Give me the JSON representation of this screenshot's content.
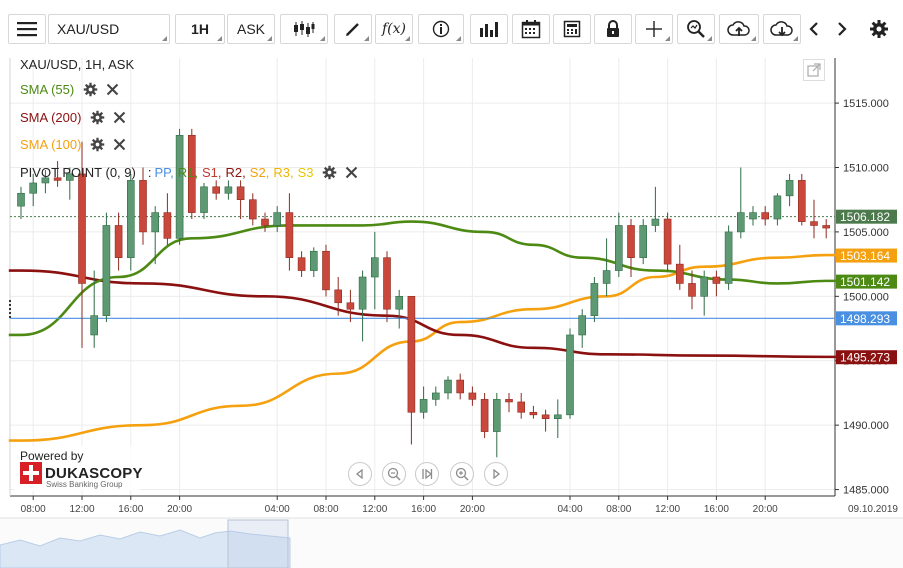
{
  "toolbar": {
    "symbol": "XAU/USD",
    "timeframe": "1H",
    "side": "ASK",
    "icons": [
      "menu-icon",
      "candle-type-icon",
      "draw-icon",
      "function-icon",
      "info-icon",
      "volume-icon",
      "calendar-icon",
      "calculator-icon",
      "lock-icon",
      "crosshair-icon",
      "zoom-icon",
      "upload-icon",
      "download-icon",
      "prev-icon",
      "next-icon",
      "settings-icon"
    ]
  },
  "legend": {
    "title": "XAU/USD, 1H, ASK",
    "sma55": {
      "label": "SMA (55)",
      "color": "#4c8a14"
    },
    "sma200": {
      "label": "SMA (200)",
      "color": "#8b1010"
    },
    "sma100": {
      "label": "SMA (100)",
      "color": "#f5a10f"
    },
    "pivot": {
      "label": "PIVOT POINT (0, 9)",
      "sep": ":",
      "items": [
        {
          "label": "PP",
          "color": "#4a90e2",
          "comma": ","
        },
        {
          "label": "R1",
          "color": "#4c8a14",
          "comma": ","
        },
        {
          "label": "S1",
          "color": "#c0392b",
          "comma": ","
        },
        {
          "label": "R2",
          "color": "#8b1010",
          "comma": ","
        },
        {
          "label": "S2",
          "color": "#f5a10f",
          "comma": ","
        },
        {
          "label": "R3",
          "color": "#f0b400",
          "comma": ","
        },
        {
          "label": "S3",
          "color": "#e6c800",
          "comma": ""
        }
      ]
    }
  },
  "powered": {
    "line1": "Powered by",
    "brand": "DUKASCOPY",
    "sub": "Swiss Banking Group"
  },
  "chart_data": {
    "type": "candlestick",
    "ylim": [
      1484.5,
      1518.5
    ],
    "y_ticks": [
      1485,
      1490,
      1495,
      1500,
      1505,
      1510,
      1515
    ],
    "y_tick_labels": [
      "1485.000",
      "1490.000",
      "1495.000",
      "1500.000",
      "1505.000",
      "1510.000",
      "1515.000"
    ],
    "x_ticks": [
      {
        "label": "08:00",
        "i": 1
      },
      {
        "label": "12:00",
        "i": 5
      },
      {
        "label": "16:00",
        "i": 9
      },
      {
        "label": "20:00",
        "i": 13
      },
      {
        "label": "04:00",
        "i": 21
      },
      {
        "label": "08:00",
        "i": 25
      },
      {
        "label": "12:00",
        "i": 29
      },
      {
        "label": "16:00",
        "i": 33
      },
      {
        "label": "20:00",
        "i": 37
      },
      {
        "label": "04:00",
        "i": 45
      },
      {
        "label": "08:00",
        "i": 49
      },
      {
        "label": "12:00",
        "i": 53
      },
      {
        "label": "16:00",
        "i": 57
      },
      {
        "label": "20:00",
        "i": 61
      }
    ],
    "last_date": "09.10.2019",
    "candles": [
      [
        1507.0,
        1508.5,
        1506.0,
        1508.0
      ],
      [
        1508.0,
        1509.5,
        1507.0,
        1508.8
      ],
      [
        1508.8,
        1509.8,
        1508.0,
        1509.2
      ],
      [
        1509.2,
        1510.5,
        1508.5,
        1509.0
      ],
      [
        1509.0,
        1510.0,
        1507.5,
        1509.5
      ],
      [
        1509.5,
        1512.0,
        1496.0,
        1501.0
      ],
      [
        1497.0,
        1502.0,
        1496.0,
        1498.5
      ],
      [
        1498.5,
        1506.5,
        1498.0,
        1505.5
      ],
      [
        1505.5,
        1506.5,
        1502.0,
        1503.0
      ],
      [
        1503.0,
        1509.5,
        1502.0,
        1509.0
      ],
      [
        1509.0,
        1510.0,
        1504.0,
        1505.0
      ],
      [
        1505.0,
        1507.0,
        1502.5,
        1506.5
      ],
      [
        1506.5,
        1508.0,
        1504.0,
        1504.5
      ],
      [
        1504.5,
        1513.0,
        1504.0,
        1512.5
      ],
      [
        1512.5,
        1513.0,
        1506.0,
        1506.5
      ],
      [
        1506.5,
        1508.8,
        1506.0,
        1508.5
      ],
      [
        1508.5,
        1509.0,
        1507.5,
        1508.0
      ],
      [
        1508.0,
        1509.0,
        1507.5,
        1508.5
      ],
      [
        1508.5,
        1509.0,
        1506.0,
        1507.5
      ],
      [
        1507.5,
        1508.0,
        1505.5,
        1506.0
      ],
      [
        1506.0,
        1506.5,
        1505.0,
        1505.5
      ],
      [
        1505.5,
        1507.0,
        1505.0,
        1506.5
      ],
      [
        1506.5,
        1508.0,
        1502.0,
        1503.0
      ],
      [
        1503.0,
        1503.5,
        1501.5,
        1502.0
      ],
      [
        1502.0,
        1503.8,
        1501.5,
        1503.5
      ],
      [
        1503.5,
        1504.0,
        1500.0,
        1500.5
      ],
      [
        1500.5,
        1501.5,
        1498.5,
        1499.5
      ],
      [
        1499.5,
        1500.5,
        1498.0,
        1499.0
      ],
      [
        1499.0,
        1502.0,
        1496.5,
        1501.5
      ],
      [
        1501.5,
        1505.0,
        1499.0,
        1503.0
      ],
      [
        1503.0,
        1503.5,
        1498.0,
        1499.0
      ],
      [
        1499.0,
        1500.5,
        1497.5,
        1500.0
      ],
      [
        1500.0,
        1500.0,
        1488.5,
        1491.0
      ],
      [
        1491.0,
        1493.0,
        1490.5,
        1492.0
      ],
      [
        1492.0,
        1493.0,
        1491.5,
        1492.5
      ],
      [
        1492.5,
        1493.8,
        1492.0,
        1493.5
      ],
      [
        1493.5,
        1494.0,
        1492.0,
        1492.5
      ],
      [
        1492.5,
        1493.0,
        1491.5,
        1492.0
      ],
      [
        1492.0,
        1492.5,
        1489.0,
        1489.5
      ],
      [
        1489.5,
        1492.5,
        1487.5,
        1492.0
      ],
      [
        1492.0,
        1492.5,
        1491.0,
        1491.8
      ],
      [
        1491.8,
        1492.5,
        1490.5,
        1491.0
      ],
      [
        1491.0,
        1491.5,
        1490.5,
        1490.8
      ],
      [
        1490.8,
        1491.2,
        1489.5,
        1490.5
      ],
      [
        1490.5,
        1492.0,
        1489.0,
        1490.8
      ],
      [
        1490.8,
        1497.5,
        1490.5,
        1497.0
      ],
      [
        1497.0,
        1499.0,
        1496.0,
        1498.5
      ],
      [
        1498.5,
        1501.5,
        1498.0,
        1501.0
      ],
      [
        1501.0,
        1504.5,
        1500.0,
        1502.0
      ],
      [
        1502.0,
        1506.5,
        1501.5,
        1505.5
      ],
      [
        1505.5,
        1506.0,
        1501.5,
        1503.0
      ],
      [
        1503.0,
        1506.0,
        1502.5,
        1505.5
      ],
      [
        1505.5,
        1508.5,
        1505.0,
        1506.0
      ],
      [
        1506.0,
        1506.5,
        1502.0,
        1502.5
      ],
      [
        1502.5,
        1504.0,
        1500.5,
        1501.0
      ],
      [
        1501.0,
        1502.0,
        1499.0,
        1500.0
      ],
      [
        1500.0,
        1502.0,
        1498.5,
        1501.5
      ],
      [
        1501.5,
        1502.0,
        1500.0,
        1501.0
      ],
      [
        1501.0,
        1505.5,
        1500.5,
        1505.0
      ],
      [
        1505.0,
        1510.0,
        1504.5,
        1506.5
      ],
      [
        1506.0,
        1507.0,
        1505.5,
        1506.5
      ],
      [
        1506.5,
        1507.0,
        1505.5,
        1506.0
      ],
      [
        1506.0,
        1508.0,
        1505.5,
        1507.8
      ],
      [
        1507.8,
        1509.5,
        1507.0,
        1509.0
      ],
      [
        1509.0,
        1509.5,
        1505.5,
        1505.8
      ],
      [
        1505.8,
        1507.5,
        1504.5,
        1505.5
      ],
      [
        1505.5,
        1506.0,
        1504.5,
        1505.3
      ]
    ],
    "sma55": [
      [
        0,
        1497.0
      ],
      [
        8,
        1501.5
      ],
      [
        14,
        1504.5
      ],
      [
        22,
        1505.5
      ],
      [
        28,
        1505.5
      ],
      [
        32,
        1505.8
      ],
      [
        38,
        1505.0
      ],
      [
        42,
        1504.0
      ],
      [
        46,
        1503.0
      ],
      [
        52,
        1502.0
      ],
      [
        58,
        1501.3
      ],
      [
        62,
        1501.0
      ],
      [
        66,
        1501.2
      ]
    ],
    "sma200": [
      [
        0,
        1502.0
      ],
      [
        10,
        1501.0
      ],
      [
        20,
        1500.0
      ],
      [
        30,
        1498.5
      ],
      [
        36,
        1497.0
      ],
      [
        42,
        1496.0
      ],
      [
        48,
        1495.5
      ],
      [
        56,
        1495.4
      ],
      [
        66,
        1495.3
      ]
    ],
    "sma100": [
      [
        0,
        1488.8
      ],
      [
        10,
        1490.0
      ],
      [
        18,
        1491.5
      ],
      [
        26,
        1494.0
      ],
      [
        32,
        1496.5
      ],
      [
        36,
        1498.0
      ],
      [
        42,
        1499.0
      ],
      [
        48,
        1500.0
      ],
      [
        52,
        1501.5
      ],
      [
        56,
        1502.3
      ],
      [
        62,
        1503.0
      ],
      [
        66,
        1503.2
      ]
    ],
    "pp_level": 1498.293,
    "bid_level": 1506.182,
    "price_labels": [
      {
        "label": "1506.182",
        "value": 1506.182,
        "bg": "#4c7a4c"
      },
      {
        "label": "1503.164",
        "value": 1503.164,
        "bg": "#f5a10f"
      },
      {
        "label": "1501.142",
        "value": 1501.142,
        "bg": "#4c8a14"
      },
      {
        "label": "1498.293",
        "value": 1498.293,
        "bg": "#4a90e2"
      },
      {
        "label": "1495.273",
        "value": 1495.273,
        "bg": "#8b1010"
      }
    ],
    "colors": {
      "up": "#5d9a73",
      "down": "#c9483b",
      "up_edge": "#2f6b45",
      "down_edge": "#8e2a20"
    }
  }
}
